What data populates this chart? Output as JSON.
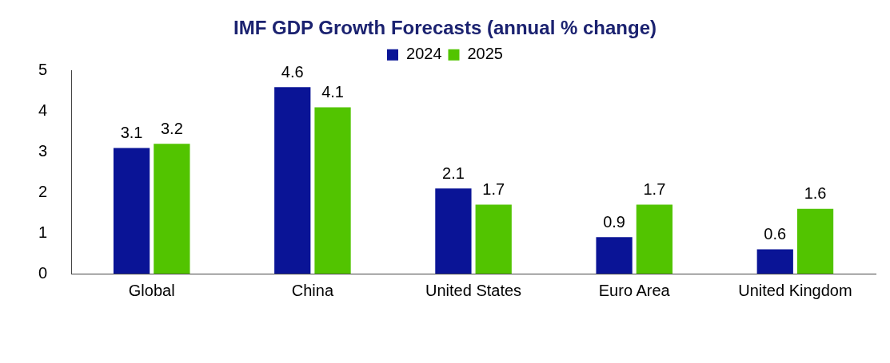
{
  "chart_data": {
    "type": "bar",
    "title": "IMF GDP Growth Forecasts (annual % change)",
    "categories": [
      "Global",
      "China",
      "United States",
      "Euro Area",
      "United Kingdom"
    ],
    "series": [
      {
        "name": "2024",
        "color": "#0a1496",
        "values": [
          3.1,
          4.6,
          2.1,
          0.9,
          0.6
        ]
      },
      {
        "name": "2025",
        "color": "#52c400",
        "values": [
          3.2,
          4.1,
          1.7,
          1.7,
          1.6
        ]
      }
    ],
    "ylim": [
      0,
      5
    ],
    "yticks": [
      0,
      1,
      2,
      3,
      4,
      5
    ],
    "grid": false,
    "legend": "top",
    "data_labels": true
  }
}
